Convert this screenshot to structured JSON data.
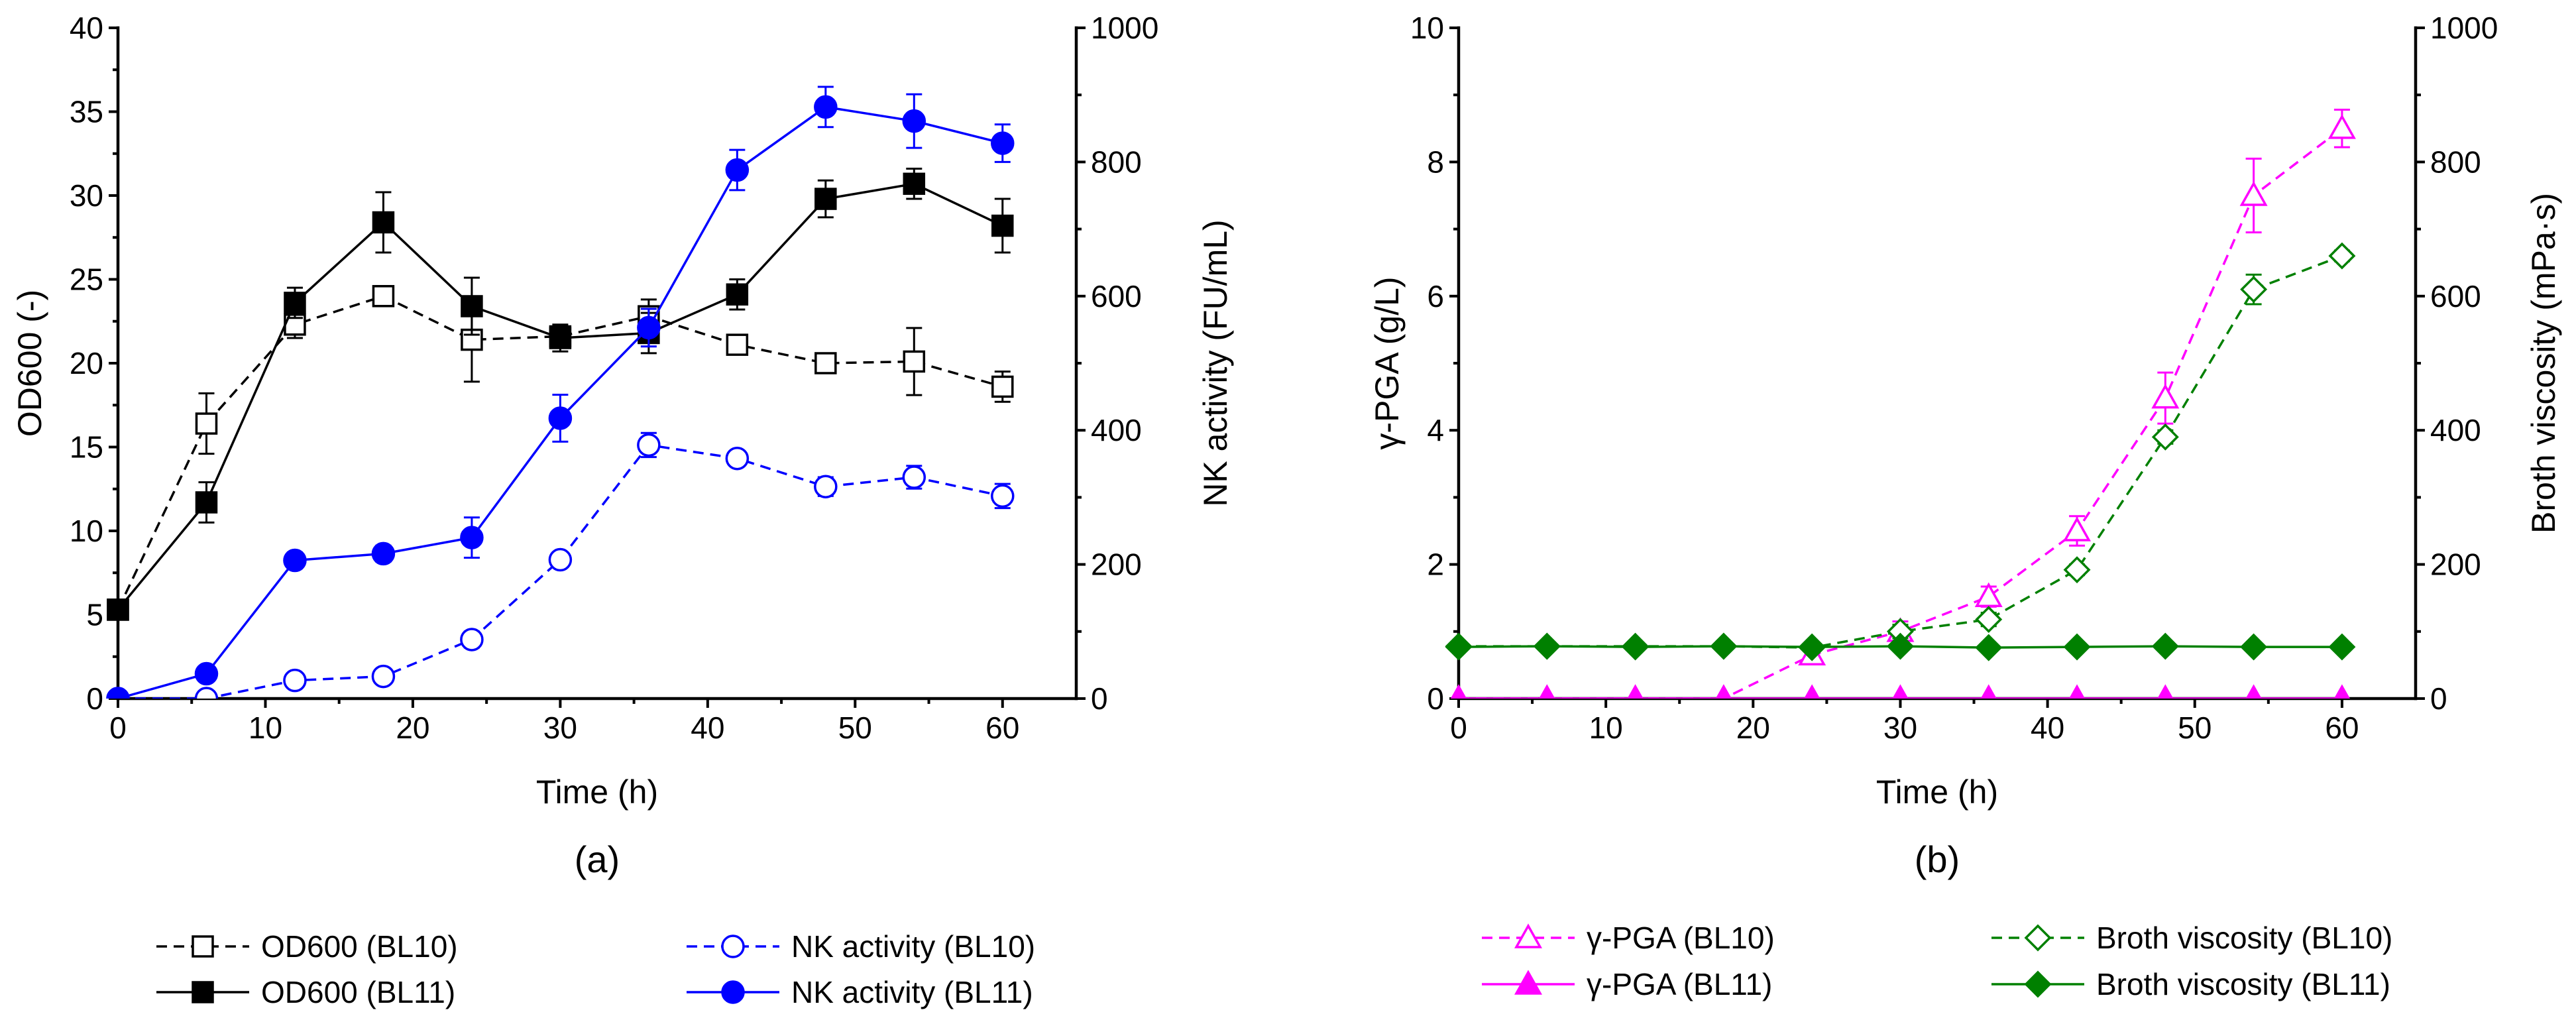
{
  "chart_data": [
    {
      "type": "line",
      "panel_label": "(a)",
      "xlabel": "Time (h)",
      "xlim": [
        0,
        65
      ],
      "xticks": [
        0,
        10,
        20,
        30,
        40,
        50,
        60
      ],
      "ylabel": "OD600 (-)",
      "ylim": [
        0,
        40
      ],
      "yticks": [
        0,
        5,
        10,
        15,
        20,
        25,
        30,
        35,
        40
      ],
      "y2label": "NK activity (FU/mL)",
      "y2lim": [
        0,
        1000
      ],
      "y2ticks": [
        0,
        200,
        400,
        600,
        800,
        1000
      ],
      "grid": false,
      "legend": "bottom",
      "x": [
        0,
        6,
        12,
        18,
        24,
        30,
        36,
        42,
        48,
        54,
        60
      ],
      "series": [
        {
          "name": "OD600 (BL10)",
          "right_axis": false,
          "color": "#000000",
          "marker": "square",
          "filled": false,
          "dashed": true,
          "values": [
            5.3,
            16.4,
            22.3,
            24.0,
            21.4,
            21.6,
            22.8,
            21.1,
            20.0,
            20.1,
            18.6
          ],
          "errors": [
            0.3,
            1.8,
            0.8,
            0.6,
            2.5,
            0.5,
            1.0,
            0.3,
            0.4,
            2.0,
            0.9
          ]
        },
        {
          "name": "OD600 (BL11)",
          "right_axis": false,
          "color": "#000000",
          "marker": "square",
          "filled": true,
          "dashed": false,
          "values": [
            5.3,
            11.7,
            23.6,
            28.4,
            23.4,
            21.5,
            21.8,
            24.1,
            29.8,
            30.7,
            28.2
          ],
          "errors": [
            0.3,
            1.2,
            0.9,
            1.8,
            1.7,
            0.8,
            1.2,
            0.9,
            1.1,
            0.9,
            1.6
          ]
        },
        {
          "name": "NK activity (BL10)",
          "right_axis": true,
          "color": "#0000FF",
          "marker": "circle",
          "filled": false,
          "dashed": true,
          "values": [
            0,
            0,
            27,
            33,
            88,
            207,
            378,
            358,
            316,
            330,
            302
          ],
          "errors": [
            0,
            4,
            8,
            7,
            12,
            10,
            18,
            8,
            14,
            17,
            18
          ]
        },
        {
          "name": "NK activity (BL11)",
          "right_axis": true,
          "color": "#0000FF",
          "marker": "circle",
          "filled": true,
          "dashed": false,
          "values": [
            0,
            37,
            206,
            216,
            240,
            418,
            553,
            788,
            882,
            861,
            828
          ],
          "errors": [
            0,
            4,
            12,
            12,
            30,
            35,
            28,
            30,
            30,
            40,
            28
          ]
        }
      ]
    },
    {
      "type": "line",
      "panel_label": "(b)",
      "xlabel": "Time (h)",
      "xlim": [
        0,
        65
      ],
      "xticks": [
        0,
        10,
        20,
        30,
        40,
        50,
        60
      ],
      "ylabel": "γ-PGA (g/L)",
      "ylim": [
        0,
        10
      ],
      "yticks": [
        0,
        2,
        4,
        6,
        8,
        10
      ],
      "y2label": "Broth viscosity (mPa·s)",
      "y2lim": [
        0,
        1000
      ],
      "y2ticks": [
        0,
        200,
        400,
        600,
        800,
        1000
      ],
      "grid": false,
      "legend": "bottom",
      "x": [
        0,
        6,
        12,
        18,
        24,
        30,
        36,
        42,
        48,
        54,
        60
      ],
      "series": [
        {
          "name": "γ-PGA (BL10)",
          "right_axis": false,
          "color": "#FF00FF",
          "marker": "triangle",
          "filled": false,
          "dashed": true,
          "values": [
            0,
            0,
            0,
            0,
            0.65,
            1.0,
            1.52,
            2.5,
            4.48,
            7.5,
            8.5
          ],
          "errors": [
            0,
            0,
            0,
            0,
            0.08,
            0.15,
            0.15,
            0.22,
            0.38,
            0.55,
            0.28
          ]
        },
        {
          "name": "γ-PGA (BL11)",
          "right_axis": false,
          "color": "#FF00FF",
          "marker": "triangle",
          "filled": true,
          "dashed": false,
          "values": [
            0,
            0,
            0,
            0,
            0,
            0,
            0,
            0,
            0,
            0,
            0
          ],
          "errors": [
            0,
            0,
            0,
            0,
            0,
            0,
            0,
            0,
            0,
            0,
            0
          ]
        },
        {
          "name": "Broth viscosity (BL10)",
          "right_axis": true,
          "color": "#008000",
          "marker": "diamond",
          "filled": false,
          "dashed": true,
          "values": [
            78,
            78,
            78,
            78,
            76,
            100,
            118,
            192,
            390,
            610,
            660
          ],
          "errors": [
            0,
            0,
            0,
            0,
            0,
            10,
            10,
            8,
            10,
            22,
            8
          ]
        },
        {
          "name": "Broth viscosity (BL11)",
          "right_axis": true,
          "color": "#008000",
          "marker": "diamond",
          "filled": true,
          "dashed": false,
          "values": [
            77,
            78,
            77,
            78,
            77,
            78,
            76,
            77,
            78,
            77,
            77
          ],
          "errors": [
            0,
            0,
            0,
            0,
            0,
            0,
            0,
            0,
            0,
            0,
            0
          ]
        }
      ]
    }
  ]
}
